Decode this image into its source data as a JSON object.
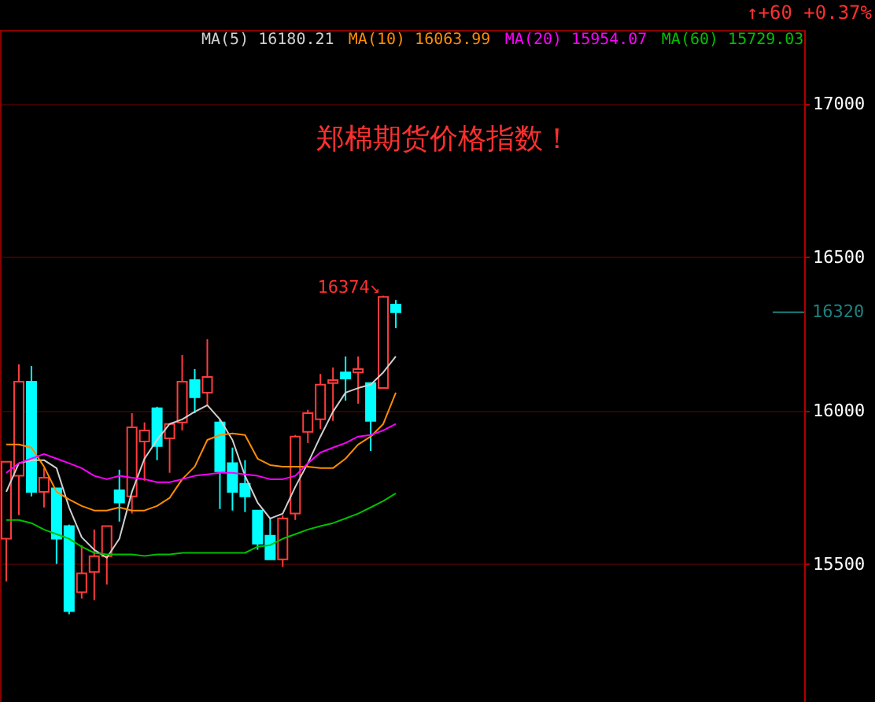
{
  "chart_data": {
    "type": "candlestick",
    "title": "郑棉期货价格指数！",
    "categories": [
      null,
      null,
      null,
      null,
      null,
      null,
      null,
      null,
      null,
      null,
      null,
      null,
      null,
      null,
      null,
      null,
      null,
      null,
      null,
      null,
      null,
      null,
      null,
      null,
      null,
      null,
      null,
      null,
      null,
      null,
      null,
      null,
      null,
      null,
      null,
      null,
      null,
      null,
      null,
      null,
      null,
      null,
      null,
      null,
      null,
      null,
      null,
      null,
      null,
      null,
      null,
      null,
      null,
      null,
      null,
      null,
      null,
      null,
      null,
      null,
      null,
      null,
      null,
      null
    ],
    "ohlc": [
      [
        15582,
        15833,
        15443,
        15833
      ],
      [
        15787,
        16150,
        15659,
        16094
      ],
      [
        16094,
        16145,
        15720,
        15735
      ],
      [
        15735,
        15812,
        15684,
        15781
      ],
      [
        15746,
        15746,
        15500,
        15582
      ],
      [
        15623,
        15628,
        15336,
        15346
      ],
      [
        15408,
        15561,
        15387,
        15469
      ],
      [
        15474,
        15612,
        15382,
        15525
      ],
      [
        15525,
        15623,
        15433,
        15623
      ],
      [
        15740,
        15807,
        15638,
        15700
      ],
      [
        15720,
        15991,
        15664,
        15945
      ],
      [
        15899,
        15961,
        15771,
        15935
      ],
      [
        16007,
        16012,
        15838,
        15884
      ],
      [
        15909,
        15956,
        15797,
        15956
      ],
      [
        15961,
        16181,
        15935,
        16094
      ],
      [
        16099,
        16135,
        15991,
        16043
      ],
      [
        16058,
        16232,
        16017,
        16109
      ],
      [
        15961,
        15971,
        15679,
        15802
      ],
      [
        15828,
        15879,
        15674,
        15735
      ],
      [
        15761,
        15838,
        15669,
        15720
      ],
      [
        15674,
        15674,
        15546,
        15566
      ],
      [
        15592,
        15648,
        15515,
        15515
      ],
      [
        15515,
        15659,
        15490,
        15648
      ],
      [
        15664,
        15920,
        15643,
        15915
      ],
      [
        15930,
        16002,
        15894,
        15991
      ],
      [
        15971,
        16119,
        15940,
        16084
      ],
      [
        16089,
        16140,
        15966,
        16099
      ],
      [
        16124,
        16176,
        16032,
        16104
      ],
      [
        16124,
        16176,
        16022,
        16135
      ],
      [
        16089,
        16089,
        15868,
        15966
      ],
      [
        16073,
        16374,
        16073,
        16370
      ],
      [
        16345,
        16360,
        16268,
        16320
      ],
      null,
      null,
      null,
      null,
      null,
      null,
      null,
      null,
      null,
      null,
      null,
      null,
      null,
      null,
      null,
      null,
      null,
      null,
      null,
      null,
      null,
      null,
      null,
      null,
      null,
      null,
      null,
      null,
      null,
      null,
      null,
      null
    ],
    "colors": [
      "#ff3c3c",
      "#ff3c3c",
      "#00ffff",
      "#ff3c3c",
      "#00ffff",
      "#00ffff",
      "#ff3c3c",
      "#ff3c3c",
      "#ff3c3c",
      "#00ffff",
      "#ff3c3c",
      "#ff3c3c",
      "#00ffff",
      "#ff3c3c",
      "#ff3c3c",
      "#00ffff",
      "#ff3c3c",
      "#00ffff",
      "#00ffff",
      "#00ffff",
      "#00ffff",
      "#00ffff",
      "#ff3c3c",
      "#ff3c3c",
      "#ff3c3c",
      "#ff3c3c",
      "#ff3c3c",
      "#00ffff",
      "#ff3c3c",
      "#00ffff",
      "#ff3c3c",
      "#00ffff",
      null,
      null,
      null,
      null,
      null,
      null,
      null,
      null,
      null,
      null,
      null,
      null,
      null,
      null,
      null,
      null,
      null,
      null,
      null,
      null,
      null,
      null,
      null,
      null,
      null,
      null,
      null,
      null,
      null,
      null,
      null,
      null
    ],
    "series": [
      {
        "type": "line",
        "name": "MA(5) 16180.21",
        "color": "#d0d0d0",
        "values": [
          15735,
          15828,
          15838,
          15838,
          15812,
          15684,
          15587,
          15546,
          15520,
          15582,
          15735,
          15843,
          15904,
          15956,
          15971,
          15996,
          16017,
          15971,
          15904,
          15787,
          15700,
          15648,
          15664,
          15751,
          15828,
          15915,
          15996,
          16058,
          16073,
          16084,
          16124,
          16176,
          null,
          null,
          null,
          null,
          null,
          null,
          null,
          null,
          null,
          null,
          null,
          null,
          null,
          null,
          null,
          null,
          null,
          null,
          null,
          null,
          null,
          null,
          null,
          null,
          null,
          null,
          null,
          null,
          null,
          null,
          null,
          null
        ]
      },
      {
        "type": "line",
        "name": "MA(10) 16063.99",
        "color": "#ff8c00",
        "values": [
          15889,
          15889,
          15879,
          15817,
          15735,
          15710,
          15689,
          15674,
          15674,
          15684,
          15674,
          15674,
          15689,
          15715,
          15776,
          15817,
          15904,
          15920,
          15925,
          15920,
          15843,
          15822,
          15817,
          15817,
          15817,
          15812,
          15812,
          15843,
          15889,
          15915,
          15956,
          16058,
          null,
          null,
          null,
          null,
          null,
          null,
          null,
          null,
          null,
          null,
          null,
          null,
          null,
          null,
          null,
          null,
          null,
          null,
          null,
          null,
          null,
          null,
          null,
          null,
          null,
          null,
          null,
          null,
          null,
          null,
          null,
          null
        ]
      },
      {
        "type": "line",
        "name": "MA(20) 15954.07",
        "color": "#ff00ff",
        "values": [
          15797,
          15828,
          15843,
          15858,
          15843,
          15828,
          15812,
          15787,
          15776,
          15787,
          15781,
          15776,
          15766,
          15766,
          15776,
          15787,
          15792,
          15797,
          15797,
          15792,
          15787,
          15776,
          15776,
          15787,
          15828,
          15863,
          15879,
          15894,
          15915,
          15920,
          15935,
          15956,
          null,
          null,
          null,
          null,
          null,
          null,
          null,
          null,
          null,
          null,
          null,
          null,
          null,
          null,
          null,
          null,
          null,
          null,
          null,
          null,
          null,
          null,
          null,
          null,
          null,
          null,
          null,
          null,
          null,
          null,
          null,
          null
        ]
      },
      {
        "type": "line",
        "name": "MA(60) 15729.03",
        "color": "#00c000",
        "values": [
          15643,
          15643,
          15633,
          15612,
          15597,
          15582,
          15556,
          15536,
          15531,
          15531,
          15531,
          15526,
          15531,
          15531,
          15536,
          15536,
          15536,
          15536,
          15536,
          15536,
          15556,
          15561,
          15582,
          15597,
          15612,
          15623,
          15633,
          15648,
          15664,
          15684,
          15705,
          15730,
          null,
          null,
          null,
          null,
          null,
          null,
          null,
          null,
          null,
          null,
          null,
          null,
          null,
          null,
          null,
          null,
          null,
          null,
          null,
          null,
          null,
          null,
          null,
          null,
          null,
          null,
          null,
          null,
          null,
          null,
          null,
          null
        ]
      }
    ],
    "ylim": [
      15050,
      17240
    ],
    "yticks": [
      15500,
      16000,
      16500,
      17000
    ],
    "grid": "y",
    "legend": "top",
    "tick_labels": "y",
    "ref_lines": [
      {
        "axis": "y",
        "value": 16320,
        "label": "16320",
        "color": "#1e8080"
      }
    ],
    "annotations": [
      "↑+60 +0.37%",
      "16374↘"
    ]
  }
}
